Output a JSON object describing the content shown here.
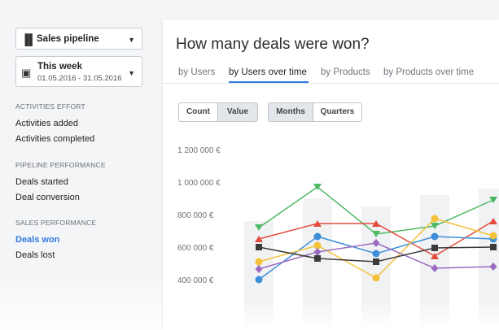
{
  "sidebar": {
    "pipeline_select": {
      "label": "Sales pipeline",
      "icon": "pipeline-icon"
    },
    "period_select": {
      "label": "This week",
      "range": "01.05.2016 - 31.05.2016",
      "icon": "calendar-icon"
    },
    "sections": [
      {
        "title": "ACTIVITIES EFFORT",
        "items": [
          "Activities added",
          "Activities completed"
        ]
      },
      {
        "title": "PIPELINE PERFORMANCE",
        "items": [
          "Deals started",
          "Deal conversion"
        ]
      },
      {
        "title": "SALES PERFORMANCE",
        "items": [
          "Deals won",
          "Deals lost"
        ]
      }
    ],
    "active_item": "Deals won"
  },
  "main": {
    "title": "How many deals were won?",
    "tabs": [
      "by Users",
      "by Users over time",
      "by Products",
      "by Products over time"
    ],
    "active_tab": "by Users over time",
    "metric_toggle": [
      "Count",
      "Value"
    ],
    "metric_selected": "Value",
    "period_toggle": [
      "Months",
      "Quarters"
    ],
    "period_selected": "Months"
  },
  "colors": {
    "accent": "#317ae2"
  },
  "chart_data": {
    "type": "line",
    "y_ticks": [
      "1 200 000 €",
      "1 000 000 €",
      "800 000 €",
      "600 000 €",
      "400 000 €"
    ],
    "ylim": [
      400000,
      1200000
    ],
    "x": [
      "1",
      "2",
      "3",
      "4",
      "5"
    ],
    "series": [
      {
        "color": "#4cb963",
        "marker": "triangle-down",
        "values": [
          720000,
          970000,
          680000,
          730000,
          890000
        ]
      },
      {
        "color": "#e44b3c",
        "marker": "triangle-up",
        "values": [
          650000,
          745000,
          745000,
          545000,
          760000
        ]
      },
      {
        "color": "#3d8fd9",
        "marker": "circle",
        "values": [
          400000,
          665000,
          560000,
          665000,
          650000
        ]
      },
      {
        "color": "#f4c23a",
        "marker": "circle",
        "values": [
          510000,
          610000,
          410000,
          775000,
          670000
        ]
      },
      {
        "color": "#9b6bc2",
        "marker": "diamond",
        "values": [
          465000,
          570000,
          625000,
          470000,
          480000
        ]
      },
      {
        "color": "#3b3b3b",
        "marker": "square",
        "values": [
          600000,
          530000,
          510000,
          595000,
          600000
        ]
      }
    ],
    "bars": [
      760000,
      900000,
      850000,
      920000,
      960000
    ],
    "grid": false
  }
}
